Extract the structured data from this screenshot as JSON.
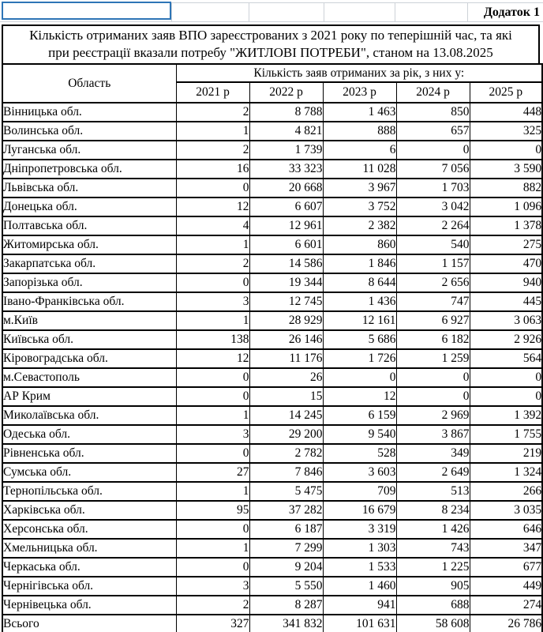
{
  "appendix_label": "Додаток 1",
  "title_line1": "Кількість отриманих заяв ВПО зареєстрованих з 2021 року по теперішній час, та які",
  "title_line2": "при реєстрації вказали потребу \"ЖИТЛОВІ ПОТРЕБИ\", станом на 13.08.2025",
  "table": {
    "region_header": "Область",
    "group_header": "Кількість заяв отриманих за рік, з них у:",
    "year_headers": [
      "2021 р",
      "2022 р",
      "2023 р",
      "2024 р",
      "2025 р"
    ],
    "rows": [
      {
        "region": "Вінницька обл.",
        "values": [
          "2",
          "8 788",
          "1 463",
          "850",
          "448"
        ]
      },
      {
        "region": "Волинська обл.",
        "values": [
          "1",
          "4 821",
          "888",
          "657",
          "325"
        ]
      },
      {
        "region": "Луганська обл.",
        "values": [
          "2",
          "1 739",
          "6",
          "0",
          "0"
        ]
      },
      {
        "region": "Дніпропетровська обл.",
        "values": [
          "16",
          "33 323",
          "11 028",
          "7 056",
          "3 590"
        ]
      },
      {
        "region": "Львівська обл.",
        "values": [
          "0",
          "20 668",
          "3 967",
          "1 703",
          "882"
        ]
      },
      {
        "region": "Донецька обл.",
        "values": [
          "12",
          "6 607",
          "3 752",
          "3 042",
          "1 096"
        ]
      },
      {
        "region": "Полтавська обл.",
        "values": [
          "4",
          "12 961",
          "2 382",
          "2 264",
          "1 378"
        ]
      },
      {
        "region": "Житомирська обл.",
        "values": [
          "1",
          "6 601",
          "860",
          "540",
          "275"
        ]
      },
      {
        "region": "Закарпатська обл.",
        "values": [
          "2",
          "14 586",
          "1 846",
          "1 157",
          "470"
        ]
      },
      {
        "region": "Запорізька обл.",
        "values": [
          "0",
          "19 344",
          "8 644",
          "2 656",
          "940"
        ]
      },
      {
        "region": "Івано-Франківська обл.",
        "values": [
          "3",
          "12 745",
          "1 436",
          "747",
          "445"
        ]
      },
      {
        "region": "м.Київ",
        "values": [
          "1",
          "28 929",
          "12 161",
          "6 927",
          "3 063"
        ]
      },
      {
        "region": "Київська обл.",
        "values": [
          "138",
          "26 146",
          "5 686",
          "6 182",
          "2 926"
        ]
      },
      {
        "region": "Кіровоградська обл.",
        "values": [
          "12",
          "11 176",
          "1 726",
          "1 259",
          "564"
        ]
      },
      {
        "region": "м.Севастополь",
        "values": [
          "0",
          "26",
          "0",
          "0",
          "0"
        ]
      },
      {
        "region": "АР Крим",
        "values": [
          "0",
          "15",
          "12",
          "0",
          "0"
        ]
      },
      {
        "region": "Миколаївська обл.",
        "values": [
          "1",
          "14 245",
          "6 159",
          "2 969",
          "1 392"
        ]
      },
      {
        "region": "Одеська обл.",
        "values": [
          "3",
          "29 200",
          "9 540",
          "3 867",
          "1 755"
        ]
      },
      {
        "region": "Рівненська обл.",
        "values": [
          "0",
          "2 782",
          "528",
          "349",
          "219"
        ]
      },
      {
        "region": "Сумська обл.",
        "values": [
          "27",
          "7 846",
          "3 603",
          "2 649",
          "1 324"
        ]
      },
      {
        "region": "Тернопільська обл.",
        "values": [
          "1",
          "5 475",
          "709",
          "513",
          "266"
        ]
      },
      {
        "region": "Харківська обл.",
        "values": [
          "95",
          "37 282",
          "16 679",
          "8 234",
          "3 035"
        ]
      },
      {
        "region": "Херсонська обл.",
        "values": [
          "0",
          "6 187",
          "3 319",
          "1 426",
          "646"
        ]
      },
      {
        "region": "Хмельницька обл.",
        "values": [
          "1",
          "7 299",
          "1 303",
          "743",
          "347"
        ]
      },
      {
        "region": "Черкаська обл.",
        "values": [
          "0",
          "9 204",
          "1 533",
          "1 225",
          "677"
        ]
      },
      {
        "region": "Чернігівська обл.",
        "values": [
          "3",
          "5 550",
          "1 460",
          "905",
          "449"
        ]
      },
      {
        "region": "Чернівецька обл.",
        "values": [
          "2",
          "8 287",
          "941",
          "688",
          "274"
        ]
      }
    ],
    "total": {
      "region": "Всього",
      "values": [
        "327",
        "341 832",
        "101 631",
        "58 608",
        "26 786"
      ]
    }
  },
  "colors": {
    "selection_border": "#2e75b6",
    "gridline": "#cdd2d8",
    "table_border": "#000000"
  }
}
